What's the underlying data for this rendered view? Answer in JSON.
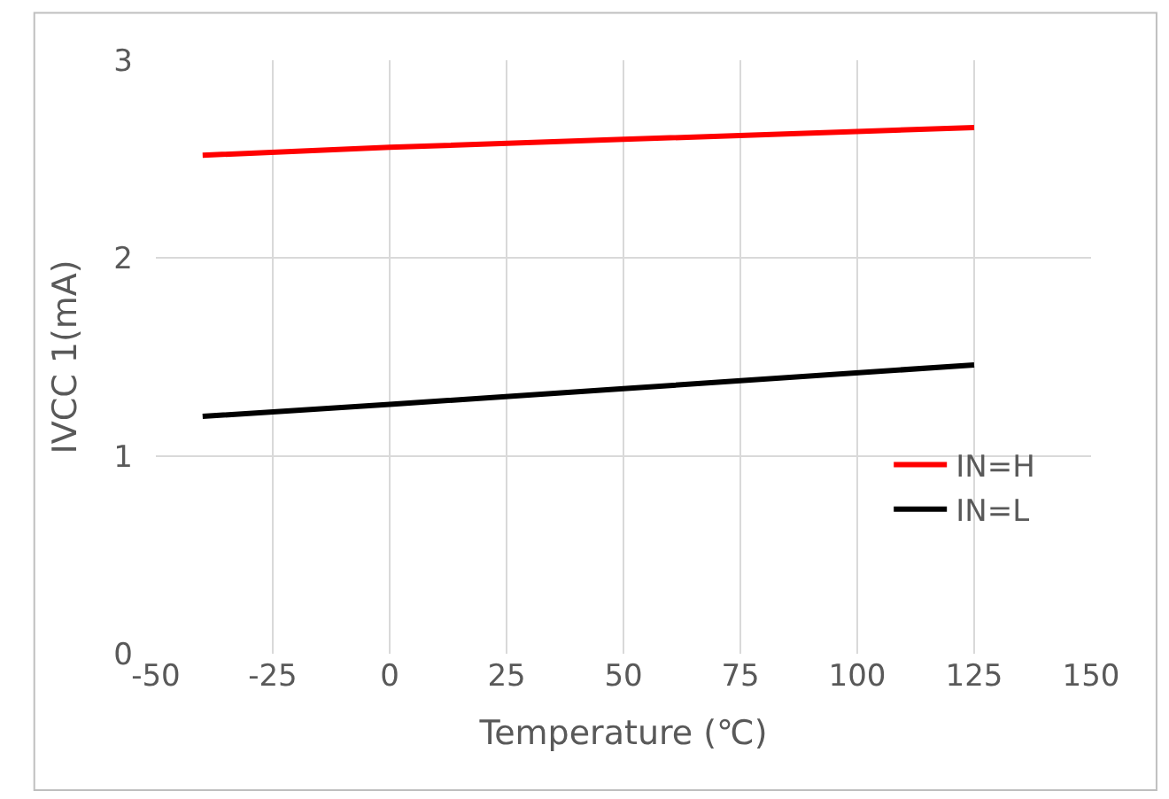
{
  "chart_data": {
    "type": "line",
    "xlabel": "Temperature (℃)",
    "ylabel": "IVCC 1(mA)",
    "x": [
      -40,
      0,
      50,
      125
    ],
    "series": [
      {
        "name": "IN=H",
        "color": "#ff0000",
        "values": [
          2.52,
          2.56,
          2.6,
          2.66
        ]
      },
      {
        "name": "IN=L",
        "color": "#000000",
        "values": [
          1.2,
          1.26,
          1.34,
          1.46
        ]
      }
    ],
    "xlim": [
      -50,
      150
    ],
    "xticks": [
      -50,
      -25,
      0,
      25,
      50,
      75,
      100,
      125,
      150
    ],
    "ylim": [
      0,
      3
    ],
    "yticks": [
      0,
      1,
      2,
      3
    ],
    "grid": true,
    "legend": "right",
    "marker": "none",
    "line_style": "solid"
  }
}
